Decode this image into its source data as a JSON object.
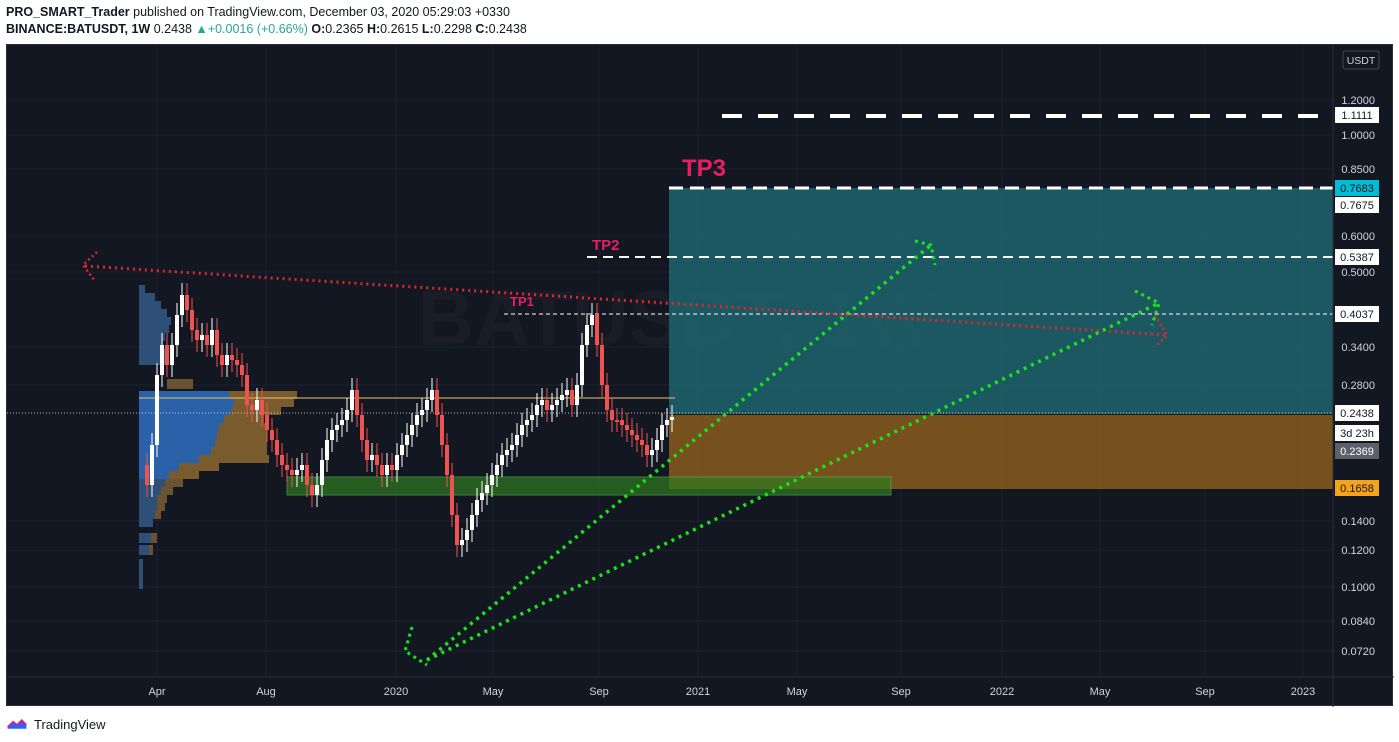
{
  "header": {
    "publisher": "PRO_SMART_Trader",
    "published_text": " published on TradingView.com, December 03, 2020 05:29:03 +0330",
    "symbol": "BINANCE:BATUSDT, 1W",
    "last": "0.2438",
    "change": "+0.0016 (+0.66%)",
    "o_label": "O:",
    "o": "0.2365",
    "h_label": "H:",
    "h": "0.2615",
    "l_label": "L:",
    "l": "0.2298",
    "c_label": "C:",
    "c": "0.2438"
  },
  "currency": "USDT",
  "price_axis": [
    "1.2000",
    "1.0000",
    "0.8500",
    "0.6000",
    "0.5000",
    "0.3400",
    "0.2800",
    "0.1400",
    "0.1200",
    "0.1000",
    "0.0840",
    "0.0720"
  ],
  "price_tags": {
    "tp_top": "1.1111",
    "tp3_high": "0.7683",
    "tp3": "0.7675",
    "tp2": "0.5387",
    "tp1": "0.4037",
    "last": "0.2438",
    "countdown": "3d 23h",
    "close": "0.2369",
    "stop": "0.1658"
  },
  "time_axis": [
    "Apr",
    "Aug",
    "2020",
    "May",
    "Sep",
    "2021",
    "May",
    "Sep",
    "2022",
    "May",
    "Sep",
    "2023"
  ],
  "annotations": {
    "tp1": "TP1",
    "tp2": "TP2",
    "tp3": "TP3"
  },
  "watermark": "BATUSDT, 1W",
  "colors": {
    "bg": "#131722",
    "up": "#ffffff",
    "down": "#ef5350",
    "profit": "#26a69a",
    "loss": "#f7a21b",
    "tp_label": "#e91e63",
    "green_arrow": "#19e619",
    "red_arrow": "#e0262c"
  },
  "footer": {
    "brand": "TradingView"
  }
}
